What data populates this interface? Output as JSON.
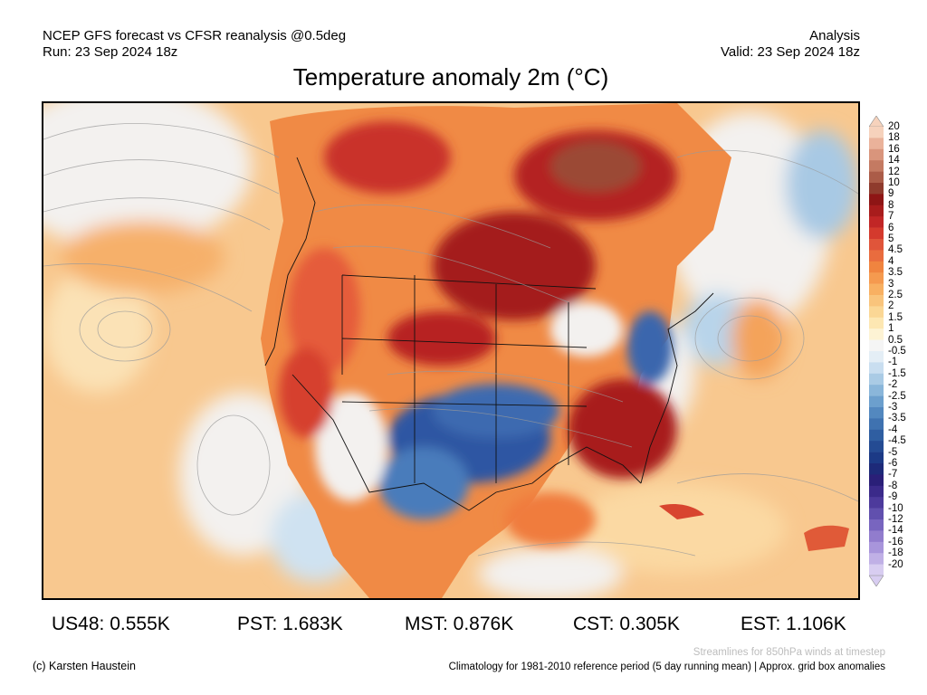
{
  "header": {
    "line1_left": "NCEP GFS forecast vs CFSR reanalysis @0.5deg",
    "line2_left": "Run: 23 Sep 2024 18z",
    "line1_right": "Analysis",
    "line2_right": "Valid: 23 Sep 2024 18z"
  },
  "title": "Temperature anomaly 2m (°C)",
  "colorbar": {
    "labels": [
      "20",
      "18",
      "16",
      "14",
      "12",
      "10",
      "9",
      "8",
      "7",
      "6",
      "5",
      "4.5",
      "4",
      "3.5",
      "3",
      "2.5",
      "2",
      "1.5",
      "1",
      "0.5",
      "-0.5",
      "-1",
      "-1.5",
      "-2",
      "-2.5",
      "-3",
      "-3.5",
      "-4",
      "-4.5",
      "-5",
      "-6",
      "-7",
      "-8",
      "-9",
      "-10",
      "-12",
      "-14",
      "-16",
      "-18",
      "-20"
    ],
    "colors": [
      "#f6d2bc",
      "#eab29a",
      "#d9957c",
      "#c47a62",
      "#ab5c48",
      "#8f3b2d",
      "#8e1515",
      "#a81c1c",
      "#c12626",
      "#d43a2d",
      "#e0553a",
      "#e96c3e",
      "#f0843f",
      "#f59a4f",
      "#f8b062",
      "#f9c47c",
      "#fbd795",
      "#fde7b2",
      "#fdf3d4",
      "#f5f5f5",
      "#e4eef6",
      "#c9def0",
      "#aacbe5",
      "#8ab6da",
      "#6c9fcd",
      "#5388bf",
      "#3f72b0",
      "#2f5ea1",
      "#244b93",
      "#1c3a86",
      "#1d2a79",
      "#2a1f78",
      "#3b2a8a",
      "#4d3a9c",
      "#6150ae",
      "#7865bf",
      "#917ccd",
      "#a895db",
      "#c0b0e6",
      "#d8cdf1"
    ]
  },
  "stats": [
    {
      "label": "US48: 0.555K"
    },
    {
      "label": "PST: 1.683K"
    },
    {
      "label": "MST: 0.876K"
    },
    {
      "label": "CST: 0.305K"
    },
    {
      "label": "EST: 1.106K"
    }
  ],
  "footer": {
    "credit": "(c) Karsten Haustein",
    "streamlines_note": "Streamlines for 850hPa winds at timestep",
    "climatology_note": "Climatology for 1981-2010 reference period (5 day running mean) | Approx. grid box anomalies"
  }
}
